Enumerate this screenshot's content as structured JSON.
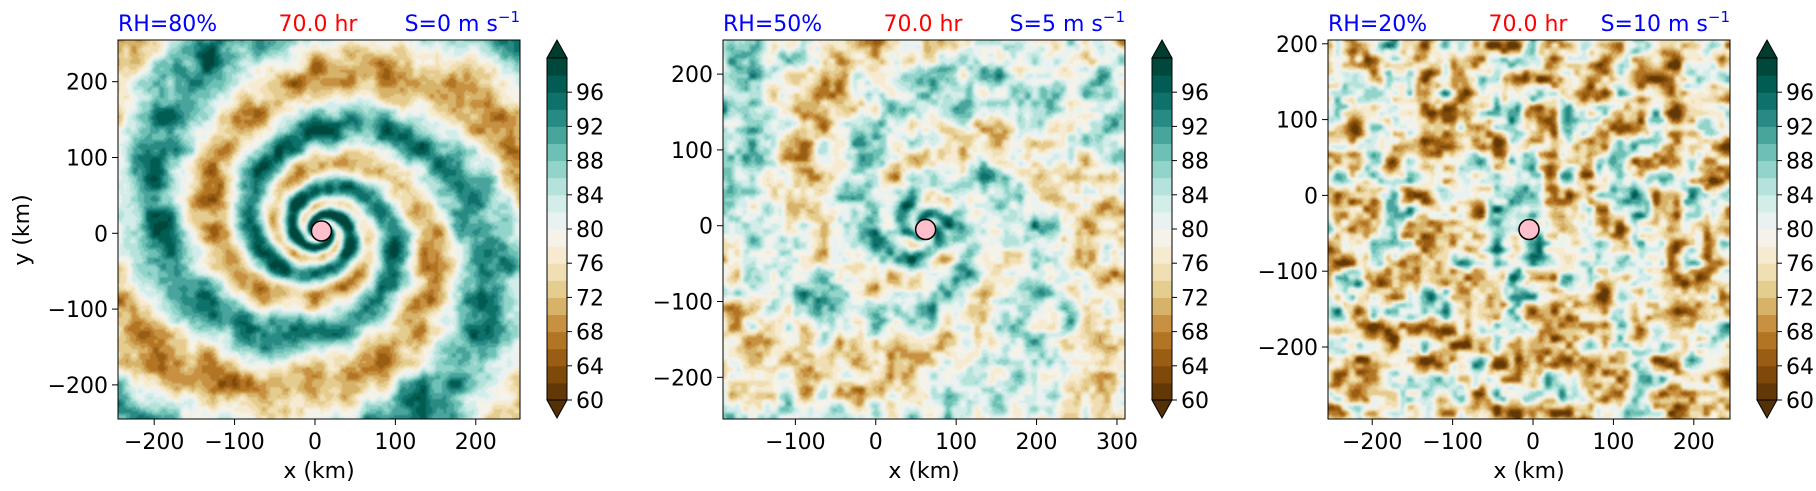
{
  "colors": {
    "title_blue": "#0000ff",
    "title_red": "#ff0000",
    "center_marker_fill": "#ffc0cb",
    "colormap": "BrBG",
    "colormap_stops": [
      "#543005",
      "#8c510a",
      "#bf812d",
      "#dfc27d",
      "#f6e8c3",
      "#f5f5f5",
      "#c7eae5",
      "#80cdc1",
      "#35978f",
      "#01665e",
      "#003c30"
    ]
  },
  "colorbar": {
    "ticks": [
      "60",
      "64",
      "68",
      "72",
      "76",
      "80",
      "84",
      "88",
      "92",
      "96"
    ],
    "range": [
      60,
      100
    ],
    "levels": 20,
    "extend": "both"
  },
  "chart_data": [
    {
      "type": "heatmap",
      "field": "relative humidity",
      "title_left": "RH=80%",
      "title_center": "70.0 hr",
      "title_right": "S=0 m s",
      "title_right_sup": "−1",
      "xlabel": "x (km)",
      "ylabel": "y (km)",
      "xlim": [
        -245,
        255
      ],
      "ylim": [
        -245,
        255
      ],
      "xticks": [
        -200,
        -100,
        0,
        100,
        200
      ],
      "xtick_labels": [
        "−200",
        "−100",
        "0",
        "100",
        "200"
      ],
      "yticks": [
        -200,
        -100,
        0,
        100,
        200
      ],
      "ytick_labels": [
        "−200",
        "−100",
        "0",
        "100",
        "200"
      ],
      "center": {
        "x": 8,
        "y": 3
      },
      "pattern": {
        "arms": 2,
        "twist": 2.7,
        "sharp": 1.6,
        "noise": 0.3,
        "dry_bias": 0.05,
        "seed": 11,
        "phase": 0.4
      }
    },
    {
      "type": "heatmap",
      "field": "relative humidity",
      "title_left": "RH=50%",
      "title_center": "70.0 hr",
      "title_right": "S=5 m s",
      "title_right_sup": "−1",
      "xlabel": "x (km)",
      "ylabel": "",
      "xlim": [
        -190,
        310
      ],
      "ylim": [
        -255,
        245
      ],
      "xticks": [
        -100,
        0,
        100,
        200,
        300
      ],
      "xtick_labels": [
        "−100",
        "0",
        "100",
        "200",
        "300"
      ],
      "yticks": [
        -200,
        -100,
        0,
        100,
        200
      ],
      "ytick_labels": [
        "−200",
        "−100",
        "0",
        "100",
        "200"
      ],
      "center": {
        "x": 62,
        "y": -5
      },
      "pattern": {
        "arms": 3,
        "twist": 2.2,
        "sharp": 1.1,
        "noise": 0.5,
        "dry_bias": 0.0,
        "seed": 23,
        "phase": 1.3
      }
    },
    {
      "type": "heatmap",
      "field": "relative humidity",
      "title_left": "RH=20%",
      "title_center": "70.0 hr",
      "title_right": "S=10 m s",
      "title_right_sup": "−1",
      "xlabel": "x (km)",
      "ylabel": "",
      "xlim": [
        -255,
        245
      ],
      "ylim": [
        -295,
        205
      ],
      "xticks": [
        -200,
        -100,
        0,
        100,
        200
      ],
      "xtick_labels": [
        "−200",
        "−100",
        "0",
        "100",
        "200"
      ],
      "yticks": [
        -200,
        -100,
        0,
        100,
        200
      ],
      "ytick_labels": [
        "−200",
        "−100",
        "0",
        "100",
        "200"
      ],
      "center": {
        "x": -5,
        "y": -45
      },
      "pattern": {
        "arms": 2,
        "twist": 1.2,
        "sharp": 0.7,
        "noise": 0.85,
        "dry_bias": -0.18,
        "seed": 37,
        "phase": 2.1
      }
    }
  ]
}
